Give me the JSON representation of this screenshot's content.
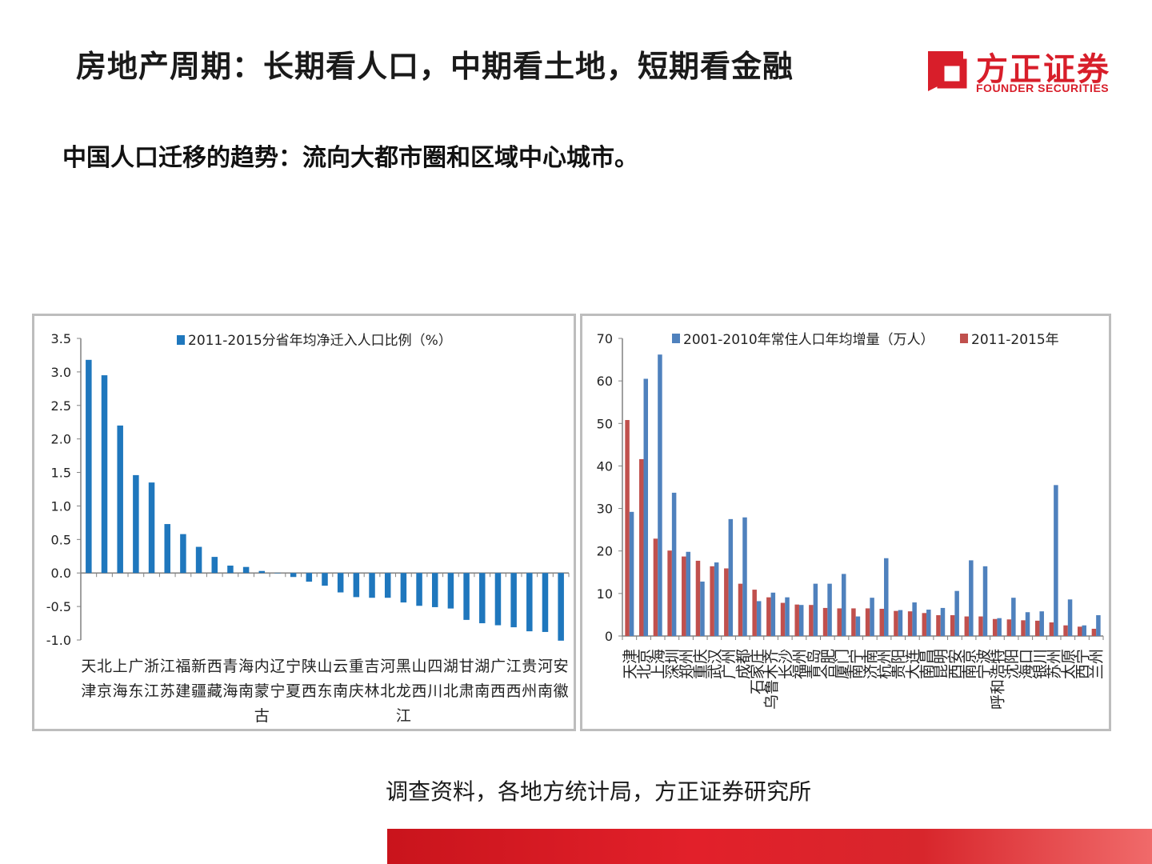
{
  "header": {
    "title": "房地产周期：长期看人口，中期看土地，短期看金融",
    "subtitle": "中国人口迁移的趋势：流向大都市圈和区域中心城市。"
  },
  "logo": {
    "name": "方正证券",
    "name_en": "FOUNDER SECURITIES",
    "color": "#d81e2a"
  },
  "footer": {
    "source": "调查资料，各地方统计局，方正证券研究所"
  },
  "colors": {
    "series_blue": "#1f77bd",
    "series_blue2": "#4f81bd",
    "series_red": "#c0504d"
  },
  "chart_data": [
    {
      "type": "bar",
      "legend_position": "top",
      "ylim": [
        -1.0,
        3.5
      ],
      "yticks": [
        "3.5",
        "3.0",
        "2.5",
        "2.0",
        "1.5",
        "1.0",
        "0.5",
        "0.0",
        "-0.5",
        "-1.0"
      ],
      "categories": [
        "天津",
        "北京",
        "上海",
        "广东",
        "浙江",
        "江苏",
        "福建",
        "新疆",
        "西藏",
        "青海",
        "海南",
        "内蒙古",
        "辽宁",
        "宁夏",
        "陕西",
        "山东",
        "云南",
        "重庆",
        "吉林",
        "河北",
        "黑龙江",
        "山西",
        "四川",
        "湖北",
        "甘肃",
        "湖南",
        "广西",
        "江西",
        "贵州",
        "河南",
        "安徽"
      ],
      "series": [
        {
          "name": "2011-2015分省年均净迁入人口比例（%）",
          "values": [
            3.18,
            2.95,
            2.2,
            1.46,
            1.35,
            0.73,
            0.58,
            0.39,
            0.24,
            0.11,
            0.09,
            0.03,
            0.0,
            -0.06,
            -0.13,
            -0.19,
            -0.29,
            -0.36,
            -0.37,
            -0.37,
            -0.44,
            -0.49,
            -0.51,
            -0.53,
            -0.7,
            -0.75,
            -0.78,
            -0.81,
            -0.87,
            -0.88,
            -1.01
          ]
        }
      ]
    },
    {
      "type": "bar",
      "legend_position": "top",
      "ylim": [
        0,
        70
      ],
      "yticks": [
        "70",
        "60",
        "50",
        "40",
        "30",
        "20",
        "10",
        "0"
      ],
      "categories": [
        "天津",
        "北京",
        "上海",
        "深圳",
        "郑州",
        "重庆",
        "武汉",
        "广州",
        "成都",
        "石家庄",
        "乌鲁木齐",
        "长沙",
        "福州",
        "青岛",
        "合肥",
        "厦门",
        "南宁",
        "济南",
        "杭州",
        "贵阳",
        "大连",
        "南昌",
        "昆明",
        "西安",
        "南京",
        "宁波",
        "呼和浩特",
        "沈阳",
        "海口",
        "银川",
        "苏州",
        "太原",
        "西宁",
        "兰州"
      ],
      "series": [
        {
          "name": "2001-2010年常住人口年均增量（万人）",
          "values": [
            29.2,
            60.5,
            66.2,
            33.7,
            19.8,
            12.8,
            17.3,
            27.5,
            27.9,
            8.2,
            10.2,
            9.1,
            7.3,
            12.3,
            12.3,
            14.6,
            4.6,
            9.0,
            18.3,
            6.1,
            7.9,
            6.2,
            6.6,
            10.6,
            17.8,
            16.4,
            4.2,
            9.0,
            5.6,
            5.8,
            35.5,
            8.6,
            2.5,
            4.9
          ]
        },
        {
          "name": "2011-2015年",
          "values": [
            50.8,
            41.6,
            22.9,
            20.1,
            18.7,
            17.7,
            16.4,
            15.9,
            12.3,
            10.9,
            9.1,
            7.8,
            7.4,
            7.3,
            6.6,
            6.5,
            6.5,
            6.5,
            6.4,
            5.9,
            5.8,
            5.4,
            4.9,
            4.9,
            4.6,
            4.6,
            4.0,
            3.9,
            3.7,
            3.6,
            3.2,
            2.5,
            2.2,
            1.7
          ]
        }
      ]
    }
  ]
}
